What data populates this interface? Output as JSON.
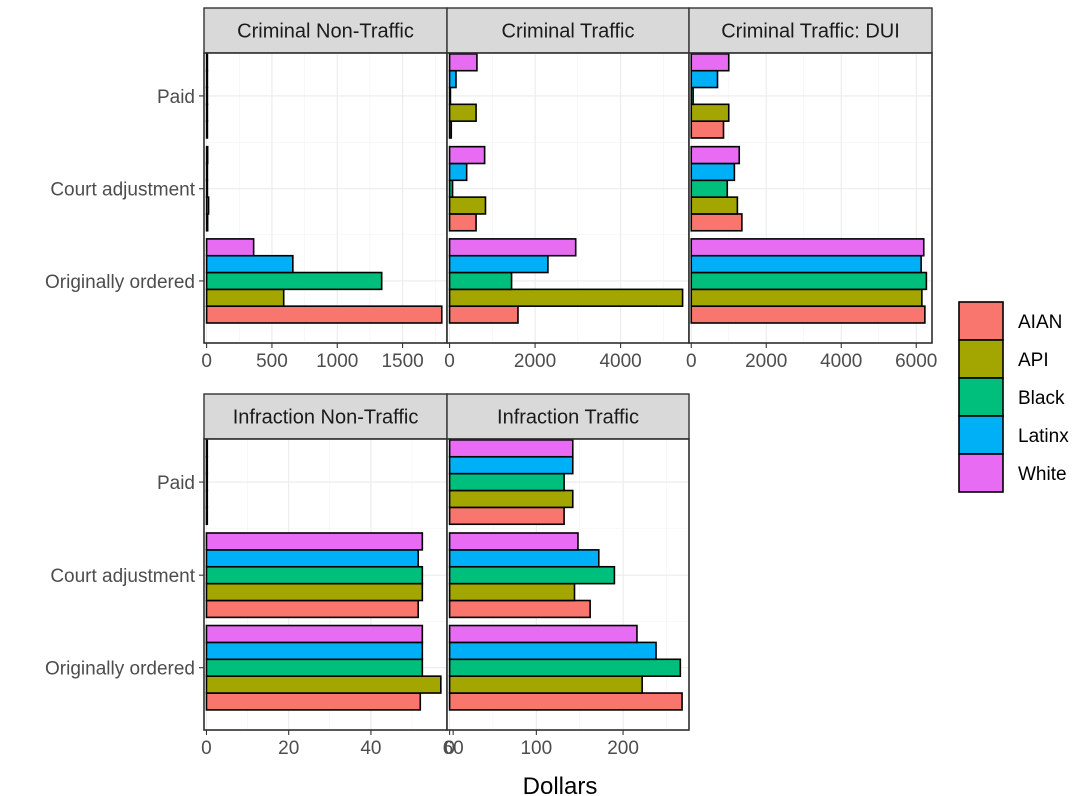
{
  "chart_data": {
    "type": "bar",
    "orientation": "horizontal",
    "facet": "wrap",
    "xlabel": "Dollars",
    "ylabel": "",
    "title": "",
    "categories": [
      "Paid",
      "Court adjustment",
      "Originally ordered"
    ],
    "groups": [
      "AIAN",
      "API",
      "Black",
      "Latinx",
      "White"
    ],
    "colors": {
      "AIAN": "#F8766D",
      "API": "#A3A500",
      "Black": "#00BF7D",
      "Latinx": "#00B0F6",
      "White": "#E76BF3"
    },
    "legend": {
      "position": "right"
    },
    "grid": true,
    "panels": [
      {
        "title": "Criminal Non-Traffic",
        "xlim": [
          -20,
          1840
        ],
        "xticks": [
          0,
          500,
          1000,
          1500
        ],
        "xtick_labels": [
          "0",
          "500",
          "1000",
          "1500"
        ],
        "values": {
          "Paid": {
            "AIAN": 2,
            "API": 2,
            "Black": 2,
            "Latinx": 2,
            "White": 2
          },
          "Court adjustment": {
            "AIAN": 8,
            "API": 15,
            "Black": 5,
            "Latinx": 5,
            "White": 8
          },
          "Originally ordered": {
            "AIAN": 1800,
            "API": 590,
            "Black": 1340,
            "Latinx": 660,
            "White": 360
          }
        }
      },
      {
        "title": "Criminal Traffic",
        "xlim": [
          -60,
          5600
        ],
        "xticks": [
          0,
          2000,
          4000
        ],
        "xtick_labels": [
          "0",
          "2000",
          "4000"
        ],
        "values": {
          "Paid": {
            "AIAN": 40,
            "API": 620,
            "Black": 20,
            "Latinx": 150,
            "White": 640
          },
          "Court adjustment": {
            "AIAN": 620,
            "API": 840,
            "Black": 70,
            "Latinx": 400,
            "White": 820
          },
          "Originally ordered": {
            "AIAN": 1600,
            "API": 5450,
            "Black": 1450,
            "Latinx": 2300,
            "White": 2950
          }
        }
      },
      {
        "title": "Criminal Traffic: DUI",
        "xlim": [
          -60,
          6420
        ],
        "xticks": [
          0,
          2000,
          4000,
          6000
        ],
        "xtick_labels": [
          "0",
          "2000",
          "4000",
          "6000"
        ],
        "values": {
          "Paid": {
            "AIAN": 860,
            "API": 1000,
            "Black": 50,
            "Latinx": 700,
            "White": 1000
          },
          "Court adjustment": {
            "AIAN": 1350,
            "API": 1230,
            "Black": 960,
            "Latinx": 1150,
            "White": 1280
          },
          "Originally ordered": {
            "AIAN": 6230,
            "API": 6150,
            "Black": 6270,
            "Latinx": 6130,
            "White": 6200
          }
        }
      },
      {
        "title": "Infraction Non-Traffic",
        "xlim": [
          -0.6,
          58.5
        ],
        "xticks": [
          0,
          20,
          40,
          60
        ],
        "xtick_labels": [
          "0",
          "20",
          "40",
          "60"
        ],
        "values": {
          "Paid": {
            "AIAN": 0.2,
            "API": 0.2,
            "Black": 0.2,
            "Latinx": 0.2,
            "White": 0.2
          },
          "Court adjustment": {
            "AIAN": 51.5,
            "API": 52.5,
            "Black": 52.5,
            "Latinx": 51.5,
            "White": 52.5
          },
          "Originally ordered": {
            "AIAN": 52,
            "API": 57,
            "Black": 52.5,
            "Latinx": 52.5,
            "White": 52.5
          }
        }
      },
      {
        "title": "Infraction Traffic",
        "xlim": [
          -3,
          276
        ],
        "xticks": [
          0,
          100,
          200
        ],
        "xtick_labels": [
          "0",
          "100",
          "200"
        ],
        "values": {
          "Paid": {
            "AIAN": 132,
            "API": 142,
            "Black": 132,
            "Latinx": 142,
            "White": 142
          },
          "Court adjustment": {
            "AIAN": 162,
            "API": 144,
            "Black": 190,
            "Latinx": 172,
            "White": 148
          },
          "Originally ordered": {
            "AIAN": 268,
            "API": 222,
            "Black": 266,
            "Latinx": 238,
            "White": 216
          }
        }
      }
    ]
  }
}
